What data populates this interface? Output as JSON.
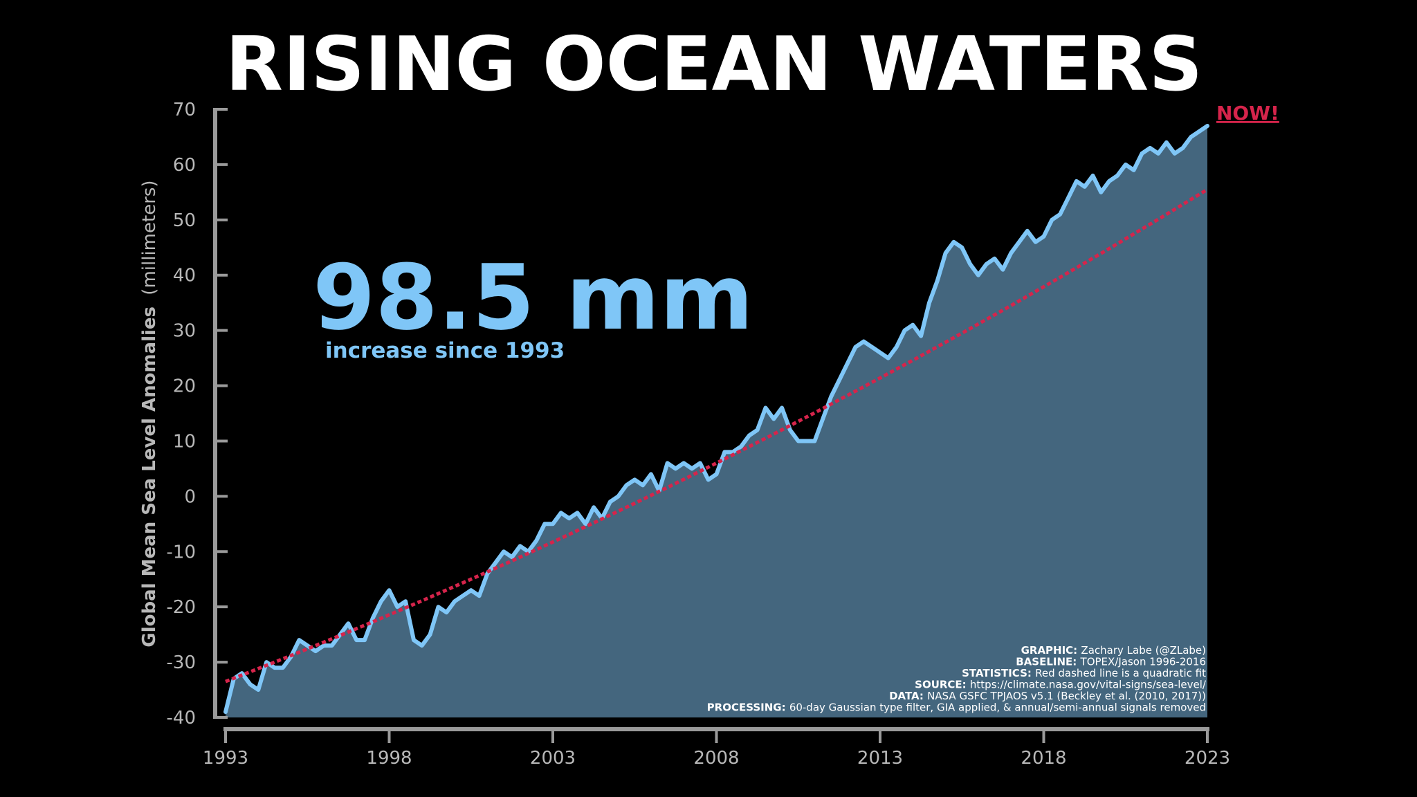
{
  "chart_data": {
    "type": "area",
    "title": "RISING OCEAN WATERS",
    "ylabel_main": "Global Mean Sea Level Anomalies",
    "ylabel_unit": "(millimeters)",
    "xlabel": "",
    "xlim": [
      1993,
      2023
    ],
    "ylim": [
      -40,
      70
    ],
    "x_ticks": [
      1993,
      1998,
      2003,
      2008,
      2013,
      2018,
      2023
    ],
    "y_ticks": [
      70,
      60,
      50,
      40,
      30,
      20,
      10,
      0,
      -10,
      -20,
      -30,
      -40
    ],
    "grid": false,
    "highlight": {
      "value": "98.5 mm",
      "caption": "increase since 1993"
    },
    "now_label": "NOW!",
    "series": [
      {
        "kind": "observed",
        "x": [
          1993.0,
          1993.25,
          1993.5,
          1993.75,
          1994.0,
          1994.25,
          1994.5,
          1994.75,
          1995.0,
          1995.25,
          1995.5,
          1995.75,
          1996.0,
          1996.25,
          1996.5,
          1996.75,
          1997.0,
          1997.25,
          1997.5,
          1997.75,
          1998.0,
          1998.25,
          1998.5,
          1998.75,
          1999.0,
          1999.25,
          1999.5,
          1999.75,
          2000.0,
          2000.25,
          2000.5,
          2000.75,
          2001.0,
          2001.25,
          2001.5,
          2001.75,
          2002.0,
          2002.25,
          2002.5,
          2002.75,
          2003.0,
          2003.25,
          2003.5,
          2003.75,
          2004.0,
          2004.25,
          2004.5,
          2004.75,
          2005.0,
          2005.25,
          2005.5,
          2005.75,
          2006.0,
          2006.25,
          2006.5,
          2006.75,
          2007.0,
          2007.25,
          2007.5,
          2007.75,
          2008.0,
          2008.25,
          2008.5,
          2008.75,
          2009.0,
          2009.25,
          2009.5,
          2009.75,
          2010.0,
          2010.25,
          2010.5,
          2010.75,
          2011.0,
          2011.25,
          2011.5,
          2011.75,
          2012.0,
          2012.25,
          2012.5,
          2012.75,
          2013.0,
          2013.25,
          2013.5,
          2013.75,
          2014.0,
          2014.25,
          2014.5,
          2014.75,
          2015.0,
          2015.25,
          2015.5,
          2015.75,
          2016.0,
          2016.25,
          2016.5,
          2016.75,
          2017.0,
          2017.25,
          2017.5,
          2017.75,
          2018.0,
          2018.25,
          2018.5,
          2018.75,
          2019.0,
          2019.25,
          2019.5,
          2019.75,
          2020.0,
          2020.25,
          2020.5,
          2020.75,
          2021.0,
          2021.25,
          2021.5,
          2021.75,
          2022.0,
          2022.25,
          2022.5,
          2022.75,
          2023.0
        ],
        "y": [
          -39,
          -33,
          -32,
          -34,
          -35,
          -30,
          -31,
          -31,
          -29,
          -26,
          -27,
          -28,
          -27,
          -27,
          -25,
          -23,
          -26,
          -26,
          -22,
          -19,
          -17,
          -20,
          -19,
          -26,
          -27,
          -25,
          -20,
          -21,
          -19,
          -18,
          -17,
          -18,
          -14,
          -12,
          -10,
          -11,
          -9,
          -10,
          -8,
          -5,
          -5,
          -3,
          -4,
          -3,
          -5,
          -2,
          -4,
          -1,
          0,
          2,
          3,
          2,
          4,
          1,
          6,
          5,
          6,
          5,
          6,
          3,
          4,
          8,
          8,
          9,
          11,
          12,
          16,
          14,
          16,
          12,
          10,
          10,
          10,
          14,
          18,
          21,
          24,
          27,
          28,
          27,
          26,
          25,
          27,
          30,
          31,
          29,
          35,
          39,
          44,
          46,
          45,
          42,
          40,
          42,
          43,
          41,
          44,
          46,
          48,
          46,
          47,
          50,
          51,
          54,
          57,
          56,
          58,
          55,
          57,
          58,
          60,
          59,
          62,
          63,
          62,
          64,
          62,
          63,
          65,
          66,
          67
        ]
      },
      {
        "kind": "trend",
        "style": "dashed",
        "x": [
          1993.0,
          1994.5,
          1996.0,
          1997.5,
          1999.0,
          2000.5,
          2002.0,
          2003.5,
          2005.0,
          2006.5,
          2008.0,
          2009.5,
          2011.0,
          2012.5,
          2014.0,
          2015.5,
          2017.0,
          2018.5,
          2020.0,
          2021.5,
          2023.0
        ],
        "y": [
          -33.5,
          -30.0,
          -26.4,
          -22.7,
          -18.9,
          -15.0,
          -11.0,
          -6.9,
          -2.7,
          1.6,
          6.0,
          10.5,
          15.1,
          19.8,
          24.6,
          29.5,
          34.5,
          39.6,
          44.8,
          50.1,
          55.5
        ]
      }
    ],
    "colors": {
      "background": "#000000",
      "line": "#7fc6f7",
      "fill": "#44667e",
      "trend": "#d6244b",
      "axis": "#9a9a9a",
      "ticks": "#b8b8b8",
      "highlight": "#7fc6f7",
      "now": "#d6244b"
    },
    "credits": [
      {
        "key": "GRAPHIC:",
        "text": "Zachary Labe (@ZLabe)"
      },
      {
        "key": "BASELINE:",
        "text": "TOPEX/Jason 1996-2016"
      },
      {
        "key": "STATISTICS:",
        "text": "Red dashed line is a quadratic fit"
      },
      {
        "key": "SOURCE:",
        "text": "https://climate.nasa.gov/vital-signs/sea-level/"
      },
      {
        "key": "DATA:",
        "text": "NASA GSFC TPJAOS v5.1 (Beckley et al. (2010, 2017))"
      },
      {
        "key": "PROCESSING:",
        "text": "60-day Gaussian type filter, GIA applied, & annual/semi-annual signals removed"
      }
    ]
  }
}
